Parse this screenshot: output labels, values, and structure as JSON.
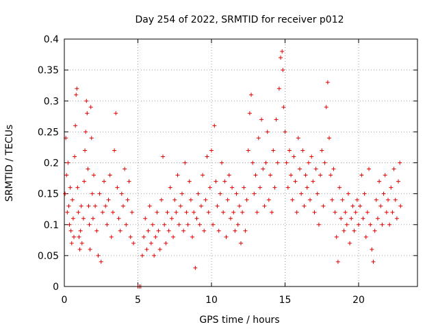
{
  "chart_data": {
    "type": "scatter",
    "title": "Day 254 of 2022, SRMTID for receiver p012",
    "xlabel": "GPS time / hours",
    "ylabel": "SRMTID / TECUs",
    "xlim": [
      0,
      24
    ],
    "ylim": [
      0,
      0.4
    ],
    "xticks": [
      0,
      5,
      10,
      15,
      20
    ],
    "yticks": [
      0,
      0.05,
      0.1,
      0.15,
      0.2,
      0.25,
      0.3,
      0.35,
      0.4
    ],
    "grid": true,
    "marker": "+",
    "series": [
      {
        "name": "SRMTID",
        "color": "#e00000",
        "points": [
          [
            0.05,
            0.15
          ],
          [
            0.1,
            0.24
          ],
          [
            0.15,
            0.18
          ],
          [
            0.2,
            0.12
          ],
          [
            0.25,
            0.2
          ],
          [
            0.3,
            0.13
          ],
          [
            0.35,
            0.1
          ],
          [
            0.4,
            0.16
          ],
          [
            0.45,
            0.09
          ],
          [
            0.5,
            0.07
          ],
          [
            0.55,
            0.14
          ],
          [
            0.6,
            0.11
          ],
          [
            0.65,
            0.08
          ],
          [
            0.7,
            0.21
          ],
          [
            0.75,
            0.26
          ],
          [
            0.8,
            0.31
          ],
          [
            0.85,
            0.32
          ],
          [
            0.9,
            0.16
          ],
          [
            0.95,
            0.12
          ],
          [
            1.0,
            0.08
          ],
          [
            1.05,
            0.06
          ],
          [
            1.1,
            0.09
          ],
          [
            1.15,
            0.13
          ],
          [
            1.2,
            0.07
          ],
          [
            1.3,
            0.11
          ],
          [
            1.35,
            0.17
          ],
          [
            1.4,
            0.22
          ],
          [
            1.45,
            0.25
          ],
          [
            1.5,
            0.3
          ],
          [
            1.55,
            0.28
          ],
          [
            1.6,
            0.19
          ],
          [
            1.65,
            0.13
          ],
          [
            1.7,
            0.1
          ],
          [
            1.75,
            0.06
          ],
          [
            1.8,
            0.29
          ],
          [
            1.85,
            0.24
          ],
          [
            1.9,
            0.15
          ],
          [
            1.95,
            0.11
          ],
          [
            2.0,
            0.18
          ],
          [
            2.1,
            0.13
          ],
          [
            2.2,
            0.09
          ],
          [
            2.3,
            0.05
          ],
          [
            2.4,
            0.15
          ],
          [
            2.5,
            0.04
          ],
          [
            2.6,
            0.12
          ],
          [
            2.7,
            0.17
          ],
          [
            2.8,
            0.13
          ],
          [
            2.9,
            0.1
          ],
          [
            3.0,
            0.14
          ],
          [
            3.1,
            0.18
          ],
          [
            3.2,
            0.08
          ],
          [
            3.3,
            0.12
          ],
          [
            3.4,
            0.22
          ],
          [
            3.5,
            0.28
          ],
          [
            3.6,
            0.16
          ],
          [
            3.7,
            0.11
          ],
          [
            3.8,
            0.09
          ],
          [
            3.9,
            0.15
          ],
          [
            4.0,
            0.13
          ],
          [
            4.1,
            0.19
          ],
          [
            4.2,
            0.1
          ],
          [
            4.3,
            0.14
          ],
          [
            4.4,
            0.17
          ],
          [
            4.5,
            0.08
          ],
          [
            4.6,
            0.12
          ],
          [
            4.7,
            0.07
          ],
          [
            5.0,
            0.0
          ],
          [
            5.1,
            0.0
          ],
          [
            5.2,
            0.0
          ],
          [
            5.3,
            0.05
          ],
          [
            5.4,
            0.08
          ],
          [
            5.5,
            0.11
          ],
          [
            5.6,
            0.06
          ],
          [
            5.7,
            0.09
          ],
          [
            5.8,
            0.13
          ],
          [
            5.9,
            0.07
          ],
          [
            6.0,
            0.1
          ],
          [
            6.1,
            0.05
          ],
          [
            6.2,
            0.08
          ],
          [
            6.3,
            0.12
          ],
          [
            6.4,
            0.09
          ],
          [
            6.5,
            0.06
          ],
          [
            6.6,
            0.14
          ],
          [
            6.7,
            0.21
          ],
          [
            6.8,
            0.1
          ],
          [
            6.9,
            0.07
          ],
          [
            7.0,
            0.12
          ],
          [
            7.1,
            0.09
          ],
          [
            7.2,
            0.16
          ],
          [
            7.3,
            0.11
          ],
          [
            7.4,
            0.08
          ],
          [
            7.5,
            0.14
          ],
          [
            7.6,
            0.12
          ],
          [
            7.7,
            0.18
          ],
          [
            7.8,
            0.1
          ],
          [
            7.9,
            0.13
          ],
          [
            8.0,
            0.15
          ],
          [
            8.1,
            0.09
          ],
          [
            8.2,
            0.2
          ],
          [
            8.3,
            0.12
          ],
          [
            8.4,
            0.1
          ],
          [
            8.5,
            0.17
          ],
          [
            8.6,
            0.14
          ],
          [
            8.7,
            0.08
          ],
          [
            8.8,
            0.12
          ],
          [
            8.9,
            0.03
          ],
          [
            9.0,
            0.11
          ],
          [
            9.1,
            0.15
          ],
          [
            9.2,
            0.1
          ],
          [
            9.3,
            0.13
          ],
          [
            9.4,
            0.18
          ],
          [
            9.5,
            0.09
          ],
          [
            9.6,
            0.14
          ],
          [
            9.7,
            0.21
          ],
          [
            9.8,
            0.12
          ],
          [
            9.9,
            0.16
          ],
          [
            10.0,
            0.22
          ],
          [
            10.1,
            0.1
          ],
          [
            10.2,
            0.26
          ],
          [
            10.3,
            0.17
          ],
          [
            10.4,
            0.13
          ],
          [
            10.5,
            0.09
          ],
          [
            10.6,
            0.15
          ],
          [
            10.7,
            0.2
          ],
          [
            10.8,
            0.12
          ],
          [
            10.9,
            0.17
          ],
          [
            11.0,
            0.08
          ],
          [
            11.1,
            0.14
          ],
          [
            11.2,
            0.18
          ],
          [
            11.3,
            0.11
          ],
          [
            11.4,
            0.16
          ],
          [
            11.5,
            0.12
          ],
          [
            11.6,
            0.09
          ],
          [
            11.7,
            0.15
          ],
          [
            11.8,
            0.1
          ],
          [
            11.9,
            0.13
          ],
          [
            12.0,
            0.07
          ],
          [
            12.1,
            0.12
          ],
          [
            12.2,
            0.16
          ],
          [
            12.3,
            0.09
          ],
          [
            12.4,
            0.14
          ],
          [
            12.5,
            0.22
          ],
          [
            12.6,
            0.28
          ],
          [
            12.7,
            0.31
          ],
          [
            12.8,
            0.2
          ],
          [
            12.9,
            0.15
          ],
          [
            13.0,
            0.18
          ],
          [
            13.1,
            0.12
          ],
          [
            13.2,
            0.24
          ],
          [
            13.3,
            0.16
          ],
          [
            13.4,
            0.27
          ],
          [
            13.5,
            0.19
          ],
          [
            13.6,
            0.13
          ],
          [
            13.7,
            0.2
          ],
          [
            13.8,
            0.25
          ],
          [
            13.9,
            0.14
          ],
          [
            14.0,
            0.18
          ],
          [
            14.1,
            0.12
          ],
          [
            14.2,
            0.22
          ],
          [
            14.3,
            0.16
          ],
          [
            14.4,
            0.27
          ],
          [
            14.5,
            0.2
          ],
          [
            14.6,
            0.32
          ],
          [
            14.7,
            0.37
          ],
          [
            14.8,
            0.38
          ],
          [
            14.85,
            0.35
          ],
          [
            14.9,
            0.29
          ],
          [
            15.0,
            0.25
          ],
          [
            15.1,
            0.2
          ],
          [
            15.2,
            0.16
          ],
          [
            15.3,
            0.22
          ],
          [
            15.4,
            0.18
          ],
          [
            15.5,
            0.14
          ],
          [
            15.6,
            0.21
          ],
          [
            15.7,
            0.17
          ],
          [
            15.8,
            0.12
          ],
          [
            15.9,
            0.24
          ],
          [
            16.0,
            0.19
          ],
          [
            16.1,
            0.15
          ],
          [
            16.2,
            0.22
          ],
          [
            16.3,
            0.13
          ],
          [
            16.4,
            0.18
          ],
          [
            16.5,
            0.16
          ],
          [
            16.6,
            0.2
          ],
          [
            16.7,
            0.14
          ],
          [
            16.8,
            0.21
          ],
          [
            16.9,
            0.17
          ],
          [
            17.0,
            0.12
          ],
          [
            17.1,
            0.19
          ],
          [
            17.2,
            0.15
          ],
          [
            17.3,
            0.1
          ],
          [
            17.4,
            0.18
          ],
          [
            17.5,
            0.22
          ],
          [
            17.6,
            0.13
          ],
          [
            17.7,
            0.2
          ],
          [
            17.8,
            0.29
          ],
          [
            17.9,
            0.33
          ],
          [
            18.0,
            0.24
          ],
          [
            18.1,
            0.18
          ],
          [
            18.2,
            0.14
          ],
          [
            18.3,
            0.19
          ],
          [
            18.4,
            0.12
          ],
          [
            18.5,
            0.08
          ],
          [
            18.6,
            0.04
          ],
          [
            18.7,
            0.16
          ],
          [
            18.8,
            0.11
          ],
          [
            18.9,
            0.14
          ],
          [
            19.0,
            0.09
          ],
          [
            19.1,
            0.12
          ],
          [
            19.2,
            0.1
          ],
          [
            19.3,
            0.15
          ],
          [
            19.4,
            0.07
          ],
          [
            19.5,
            0.11
          ],
          [
            19.6,
            0.13
          ],
          [
            19.7,
            0.09
          ],
          [
            19.8,
            0.12
          ],
          [
            19.9,
            0.14
          ],
          [
            20.0,
            0.1
          ],
          [
            20.1,
            0.13
          ],
          [
            20.2,
            0.18
          ],
          [
            20.3,
            0.11
          ],
          [
            20.4,
            0.15
          ],
          [
            20.5,
            0.08
          ],
          [
            20.6,
            0.12
          ],
          [
            20.7,
            0.19
          ],
          [
            20.8,
            0.1
          ],
          [
            20.9,
            0.06
          ],
          [
            21.0,
            0.04
          ],
          [
            21.1,
            0.09
          ],
          [
            21.2,
            0.14
          ],
          [
            21.3,
            0.11
          ],
          [
            21.4,
            0.17
          ],
          [
            21.5,
            0.13
          ],
          [
            21.6,
            0.1
          ],
          [
            21.7,
            0.15
          ],
          [
            21.8,
            0.18
          ],
          [
            21.9,
            0.12
          ],
          [
            22.0,
            0.14
          ],
          [
            22.1,
            0.1
          ],
          [
            22.2,
            0.16
          ],
          [
            22.3,
            0.12
          ],
          [
            22.4,
            0.19
          ],
          [
            22.5,
            0.14
          ],
          [
            22.6,
            0.11
          ],
          [
            22.7,
            0.17
          ],
          [
            22.8,
            0.2
          ],
          [
            22.85,
            0.13
          ]
        ]
      }
    ]
  }
}
